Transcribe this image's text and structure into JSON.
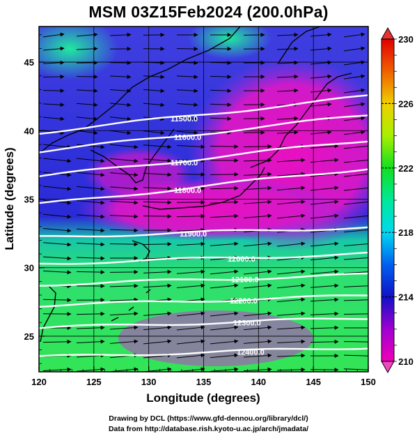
{
  "title": "MSM 03Z15Feb2024 (200.0hPa)",
  "chart_data": {
    "type": "heatmap",
    "title": "MSM 03Z15Feb2024 (200.0hPa)",
    "xlabel": "Longitude (degrees)",
    "ylabel": "Latitude  (degrees)",
    "xlim": [
      120,
      150
    ],
    "ylim": [
      22.4,
      47.6
    ],
    "x_ticks": [
      "120",
      "125",
      "130",
      "135",
      "140",
      "145",
      "150"
    ],
    "y_ticks": [
      "25",
      "30",
      "35",
      "40",
      "45"
    ],
    "colorbar": {
      "ticks": [
        "210",
        "214",
        "218",
        "222",
        "226",
        "230"
      ],
      "min": 210,
      "max": 230
    },
    "contours": [
      {
        "label": "11500.0",
        "value": 11500
      },
      {
        "label": "11600.0",
        "value": 11600
      },
      {
        "label": "11700.0",
        "value": 11700
      },
      {
        "label": "11800.0",
        "value": 11800
      },
      {
        "label": "11900.0",
        "value": 11900
      },
      {
        "label": "12000.0",
        "value": 12000
      },
      {
        "label": "12100.0",
        "value": 12100
      },
      {
        "label": "12200.0",
        "value": 12200
      },
      {
        "label": "12300.0",
        "value": 12300
      },
      {
        "label": "12400.0",
        "value": 12400
      }
    ]
  },
  "credits": {
    "line1": "Drawing by DCL (https://www.gfd-dennou.org/library/dcl/)",
    "line2": "Data from http://database.rish.kyoto-u.ac.jp/arch/jmadata/"
  }
}
